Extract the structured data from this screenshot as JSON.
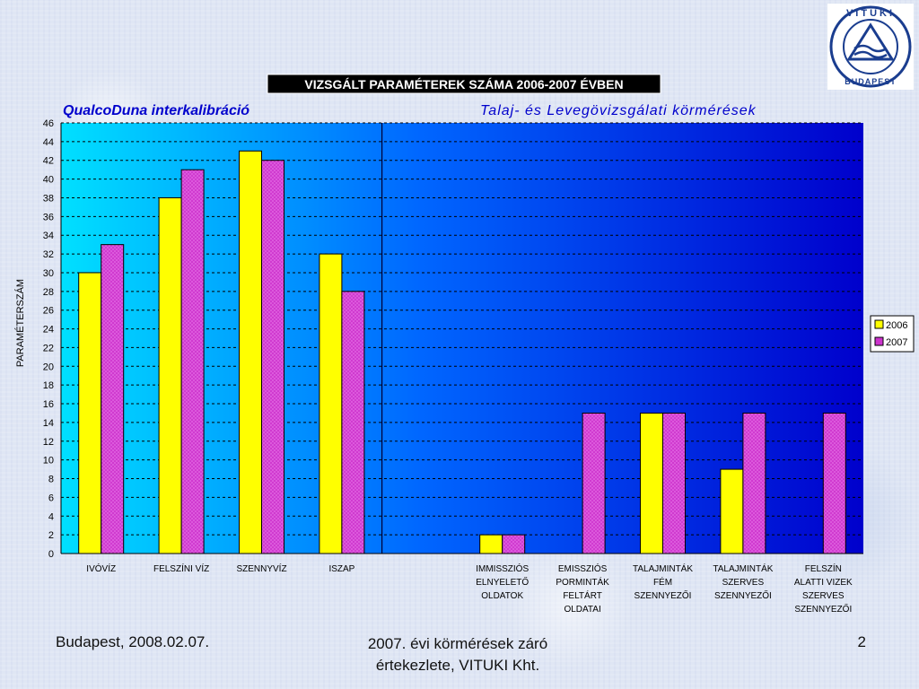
{
  "chart_data": {
    "type": "bar",
    "title": "VIZSGÁLT PARAMÉTEREK SZÁMA 2006-2007 ÉVBEN",
    "section_left": "QualcoDuna  interkalibráció",
    "section_right": "Talaj-  és  Levegövizsgálati  körmérések",
    "ylabel": "PARAMÉTERSZÁM",
    "xlabel": "",
    "ylim": [
      0,
      46
    ],
    "ytick_step": 2,
    "grid": true,
    "legend_position": "right",
    "categories": [
      [
        "IVÓVÍZ"
      ],
      [
        "FELSZÍNI VÍZ"
      ],
      [
        "SZENNYVÍZ"
      ],
      [
        "ISZAP"
      ],
      [
        ""
      ],
      [
        "IMMISSZIÓS",
        "ELNYELETŐ",
        "OLDATOK"
      ],
      [
        "EMISSZIÓS",
        "PORMINTÁK",
        "FELTÁRT",
        "OLDATAI"
      ],
      [
        "TALAJMINTÁK",
        "FÉM",
        "SZENNYEZŐI"
      ],
      [
        "TALAJMINTÁK",
        "SZERVES",
        "SZENNYEZŐI"
      ],
      [
        "FELSZÍN",
        "ALATTI VIZEK",
        "SZERVES",
        "SZENNYEZŐI"
      ]
    ],
    "series": [
      {
        "name": "2006",
        "color": "#ffff00",
        "values": [
          30,
          38,
          43,
          32,
          null,
          2,
          null,
          15,
          9,
          null
        ]
      },
      {
        "name": "2007",
        "color": "#cc33cc",
        "values": [
          33,
          41,
          42,
          28,
          null,
          2,
          15,
          15,
          15,
          15
        ]
      }
    ],
    "divider_after_category": 4
  },
  "logo": {
    "text": "VITUKI",
    "subtext": "BUDAPEST"
  },
  "footer": {
    "left": "Budapest, 2008.02.07.",
    "center_line1": "2007. évi körmérések záró",
    "center_line2": "értekezlete, VITUKI Kht.",
    "page": "2"
  }
}
